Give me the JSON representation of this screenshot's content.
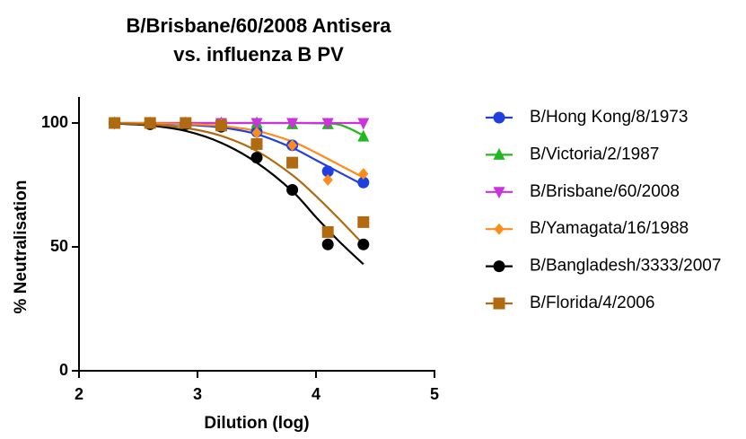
{
  "chart_data": {
    "type": "scatter",
    "title": "B/Brisbane/60/2008  Antisera",
    "subtitle": "vs.  influenza B PV",
    "x_label": "Dilution (log)",
    "y_label": "% Neutralisation",
    "xlim": [
      2,
      5
    ],
    "ylim": [
      0,
      110
    ],
    "xticks": [
      2,
      3,
      4,
      5
    ],
    "yticks": [
      0,
      50,
      100
    ],
    "legend": "right",
    "x": [
      2.3,
      2.6,
      2.9,
      3.2,
      3.5,
      3.8,
      4.1,
      4.4
    ],
    "curve_x": [
      2.3,
      2.6,
      2.9,
      3.2,
      3.5,
      3.8,
      4.0,
      4.2,
      4.4
    ],
    "series": [
      {
        "name": "B/Hong Kong/8/1973",
        "color": "#1f3fe0",
        "marker": "circle",
        "values": [
          100,
          100,
          100,
          99,
          96.5,
          91,
          80.5,
          76
        ],
        "curve": [
          100,
          99.8,
          99.3,
          98.2,
          95.5,
          90,
          85,
          80,
          75
        ]
      },
      {
        "name": "B/Victoria/2/1987",
        "color": "#22b822",
        "marker": "triangle",
        "values": [
          100,
          100,
          100,
          100,
          100,
          99.5,
          99.5,
          94.5
        ],
        "curve": [
          100,
          100,
          100,
          100,
          100,
          100,
          99.9,
          99.3,
          95
        ]
      },
      {
        "name": "B/Brisbane/60/2008",
        "color": "#cc33dd",
        "marker": "triangle-down",
        "values": [
          100,
          100,
          100,
          100,
          100,
          100,
          100,
          100
        ],
        "curve": [
          100,
          100,
          100,
          100,
          100,
          100,
          100,
          100,
          100
        ]
      },
      {
        "name": "B/Yamagata/16/1988",
        "color": "#ff8c1a",
        "marker": "diamond",
        "values": [
          100,
          100,
          100,
          99.5,
          96,
          91,
          77,
          79.5
        ],
        "curve": [
          100,
          99.9,
          99.6,
          98.8,
          96.8,
          92.5,
          88,
          83,
          78
        ]
      },
      {
        "name": "B/Bangladesh/3333/2007",
        "color": "#000000",
        "marker": "circle",
        "values": [
          100,
          99.5,
          99.5,
          98.5,
          86,
          73,
          51,
          51
        ],
        "curve": [
          99.8,
          99,
          96.8,
          92,
          84,
          72.5,
          62,
          52,
          43
        ]
      },
      {
        "name": "B/Florida/4/2006",
        "color": "#b06a10",
        "marker": "square",
        "values": [
          100,
          100,
          100,
          99,
          91.5,
          84,
          56,
          60
        ],
        "curve": [
          99.9,
          99.4,
          98,
          94.8,
          88.7,
          79,
          70.5,
          61,
          51
        ]
      }
    ]
  }
}
